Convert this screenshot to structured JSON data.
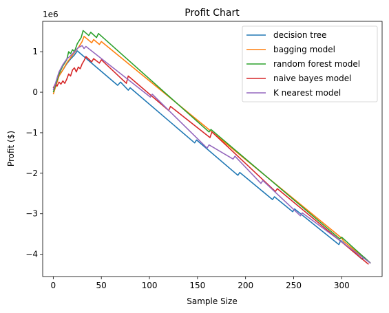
{
  "chart_data": {
    "type": "line",
    "title": "Profit Chart",
    "xlabel": "Sample Size",
    "ylabel": "Profit ($)",
    "y_multiplier_label": "1e6",
    "xlim": [
      -11,
      342
    ],
    "ylim": [
      -4.55,
      1.75
    ],
    "xticks": [
      0,
      50,
      100,
      150,
      200,
      250,
      300
    ],
    "yticks": [
      -4,
      -3,
      -2,
      -1,
      0,
      1
    ],
    "grid": false,
    "legend_position": "top-right",
    "series": [
      {
        "name": "decision tree",
        "color": "#1f77b4",
        "points": [
          [
            0,
            0.1
          ],
          [
            6,
            0.4
          ],
          [
            10,
            0.55
          ],
          [
            14,
            0.7
          ],
          [
            18,
            0.82
          ],
          [
            22,
            0.92
          ],
          [
            25,
            1.02
          ],
          [
            67,
            0.17
          ],
          [
            70,
            0.25
          ],
          [
            78,
            0.05
          ],
          [
            80,
            0.11
          ],
          [
            147,
            -1.25
          ],
          [
            149,
            -1.18
          ],
          [
            192,
            -2.05
          ],
          [
            194,
            -1.98
          ],
          [
            228,
            -2.65
          ],
          [
            230,
            -2.58
          ],
          [
            249,
            -2.95
          ],
          [
            251,
            -2.88
          ],
          [
            297,
            -3.76
          ],
          [
            299,
            -3.66
          ],
          [
            321,
            -4.12
          ],
          [
            323,
            -4.07
          ],
          [
            330,
            -4.22
          ]
        ]
      },
      {
        "name": "bagging model",
        "color": "#ff7f0e",
        "points": [
          [
            0,
            -0.05
          ],
          [
            6,
            0.4
          ],
          [
            10,
            0.55
          ],
          [
            14,
            0.72
          ],
          [
            18,
            0.85
          ],
          [
            22,
            0.98
          ],
          [
            26,
            1.1
          ],
          [
            30,
            1.25
          ],
          [
            32,
            1.38
          ],
          [
            40,
            1.22
          ],
          [
            42,
            1.3
          ],
          [
            48,
            1.18
          ],
          [
            50,
            1.25
          ],
          [
            300,
            -3.6
          ],
          [
            302,
            -3.68
          ],
          [
            330,
            -4.22
          ]
        ]
      },
      {
        "name": "random forest model",
        "color": "#2ca02c",
        "points": [
          [
            0,
            0.0
          ],
          [
            6,
            0.45
          ],
          [
            10,
            0.65
          ],
          [
            14,
            0.8
          ],
          [
            16,
            1.0
          ],
          [
            18,
            0.95
          ],
          [
            20,
            1.05
          ],
          [
            22,
            1.0
          ],
          [
            25,
            1.2
          ],
          [
            29,
            1.35
          ],
          [
            31,
            1.52
          ],
          [
            37,
            1.4
          ],
          [
            39,
            1.48
          ],
          [
            45,
            1.35
          ],
          [
            47,
            1.45
          ],
          [
            162,
            -0.98
          ],
          [
            164,
            -0.92
          ],
          [
            298,
            -3.62
          ],
          [
            300,
            -3.58
          ],
          [
            330,
            -4.22
          ]
        ]
      },
      {
        "name": "naive bayes model",
        "color": "#d62728",
        "points": [
          [
            0,
            0.1
          ],
          [
            2,
            0.2
          ],
          [
            4,
            0.15
          ],
          [
            6,
            0.25
          ],
          [
            8,
            0.2
          ],
          [
            10,
            0.28
          ],
          [
            12,
            0.22
          ],
          [
            14,
            0.32
          ],
          [
            16,
            0.45
          ],
          [
            18,
            0.4
          ],
          [
            20,
            0.55
          ],
          [
            22,
            0.6
          ],
          [
            24,
            0.5
          ],
          [
            26,
            0.62
          ],
          [
            28,
            0.58
          ],
          [
            30,
            0.7
          ],
          [
            32,
            0.78
          ],
          [
            34,
            0.88
          ],
          [
            40,
            0.75
          ],
          [
            42,
            0.83
          ],
          [
            48,
            0.72
          ],
          [
            50,
            0.8
          ],
          [
            76,
            0.22
          ],
          [
            78,
            0.4
          ],
          [
            120,
            -0.45
          ],
          [
            122,
            -0.35
          ],
          [
            163,
            -1.12
          ],
          [
            165,
            -0.98
          ],
          [
            231,
            -2.45
          ],
          [
            233,
            -2.38
          ],
          [
            328,
            -4.25
          ]
        ]
      },
      {
        "name": "K nearest model",
        "color": "#9467bd",
        "points": [
          [
            0,
            0.05
          ],
          [
            6,
            0.5
          ],
          [
            10,
            0.68
          ],
          [
            14,
            0.82
          ],
          [
            18,
            0.9
          ],
          [
            22,
            1.0
          ],
          [
            26,
            1.1
          ],
          [
            30,
            1.15
          ],
          [
            32,
            1.08
          ],
          [
            34,
            1.13
          ],
          [
            101,
            -0.12
          ],
          [
            103,
            -0.05
          ],
          [
            160,
            -1.38
          ],
          [
            162,
            -1.3
          ],
          [
            187,
            -1.65
          ],
          [
            189,
            -1.58
          ],
          [
            216,
            -2.25
          ],
          [
            218,
            -2.18
          ],
          [
            257,
            -3.05
          ],
          [
            259,
            -2.98
          ],
          [
            330,
            -4.22
          ]
        ]
      }
    ]
  }
}
